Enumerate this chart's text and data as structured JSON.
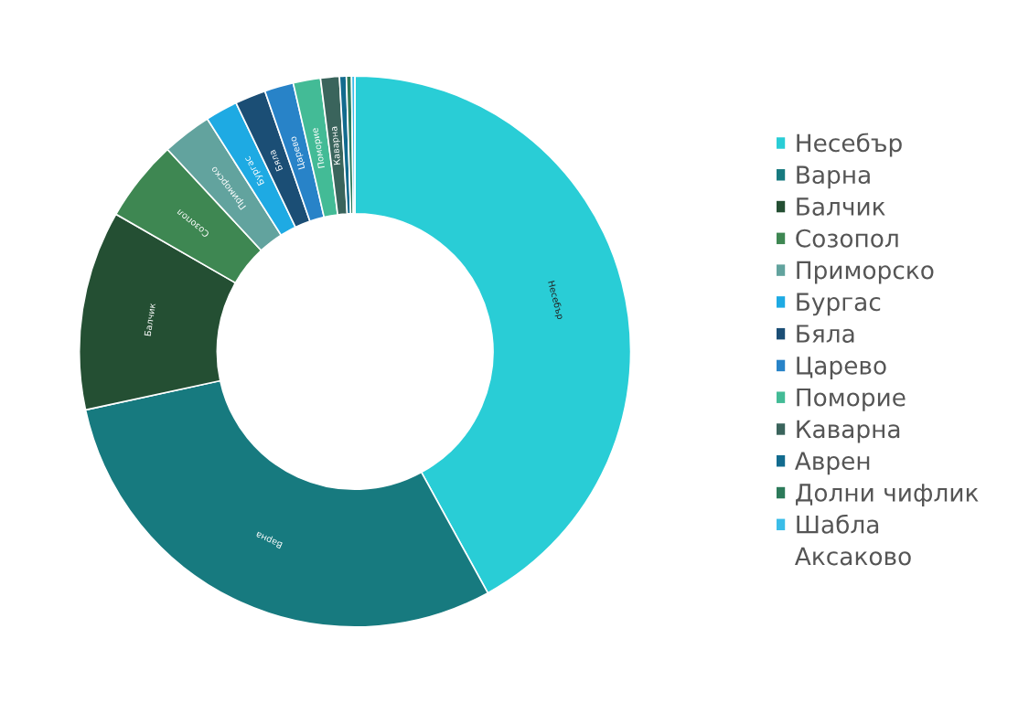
{
  "chart_data": {
    "type": "donut",
    "categories": [
      "Несебър",
      "Варна",
      "Балчик",
      "Созопол",
      "Приморско",
      "Бургас",
      "Бяла",
      "Царево",
      "Поморие",
      "Каварна",
      "Аврен",
      "Долни чифлик",
      "Шабла",
      "Аксаково"
    ],
    "values": [
      42,
      29.6,
      11.7,
      4.8,
      2.9,
      1.9,
      1.8,
      1.7,
      1.6,
      1.1,
      0.4,
      0.3,
      0.2,
      0
    ],
    "colors": [
      "#29cdd6",
      "#177a7f",
      "#244f33",
      "#3e8752",
      "#62a39e",
      "#1eaae3",
      "#1b4e75",
      "#2883c8",
      "#43bb96",
      "#3a645c",
      "#126b8e",
      "#2c7a5a",
      "#3bbde8",
      null
    ],
    "legend": "right"
  }
}
